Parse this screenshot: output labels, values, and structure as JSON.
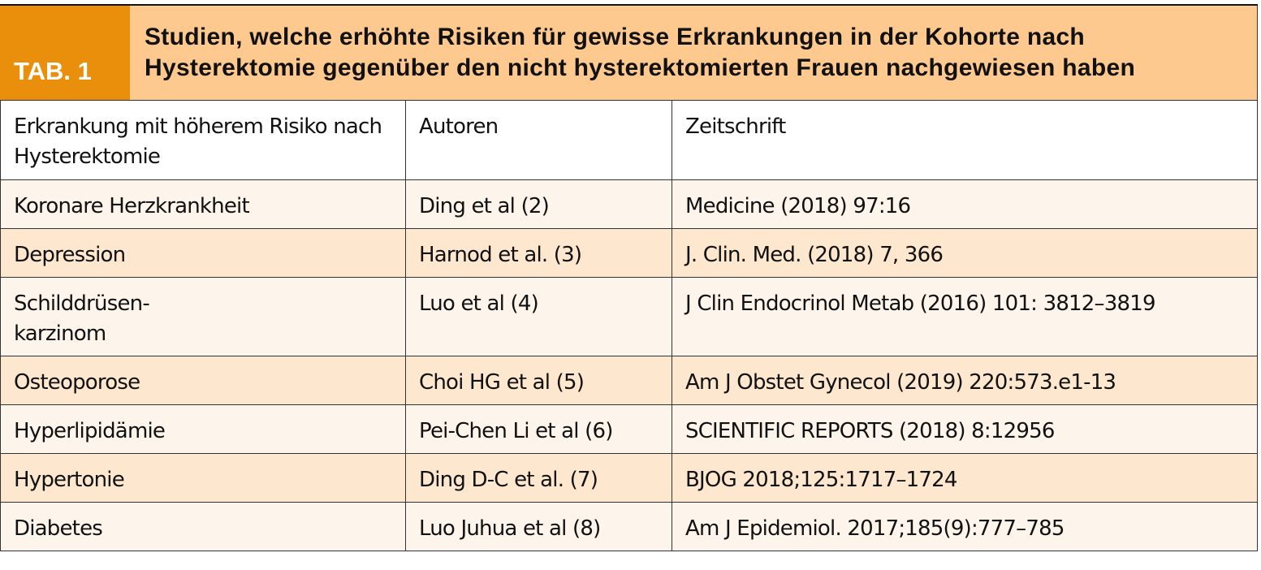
{
  "tab_label": "TAB. 1",
  "title": "Studien, welche erhöhte Risiken für gewisse Erkrankungen in der Kohorte nach Hysterektomie gegenüber den nicht hysterektomierten Frauen nachgewiesen haben",
  "colors": {
    "tab_bg": "#ea8f0c",
    "title_bg": "#fdc98e",
    "row_light": "#fdf4ec",
    "row_dark": "#fde7cf"
  },
  "columns": [
    "Erkrankung mit höherem Risiko nach Hysterektomie",
    "Autoren",
    "Zeitschrift"
  ],
  "rows": [
    [
      "Koronare Herzkrankheit",
      "Ding et al (2)",
      "Medicine (2018) 97:16"
    ],
    [
      "Depression",
      "Harnod et al. (3)",
      "J. Clin. Med. (2018) 7, 366"
    ],
    [
      "Schilddrüsen-\nkarzinom",
      "Luo et al (4)",
      "J Clin Endocrinol Metab (2016) 101: 3812–3819"
    ],
    [
      "Osteoporose",
      "Choi HG et al (5)",
      "Am J Obstet Gynecol (2019) 220:573.e1-13"
    ],
    [
      "Hyperlipidämie",
      "Pei-Chen Li et al (6)",
      "SCIENTIFIC REPORTS (2018) 8:12956"
    ],
    [
      "Hypertonie",
      "Ding D-C et al. (7)",
      "BJOG 2018;125:1717–1724"
    ],
    [
      "Diabetes",
      "Luo Juhua et al (8)",
      "Am J Epidemiol. 2017;185(9):777–785"
    ]
  ]
}
